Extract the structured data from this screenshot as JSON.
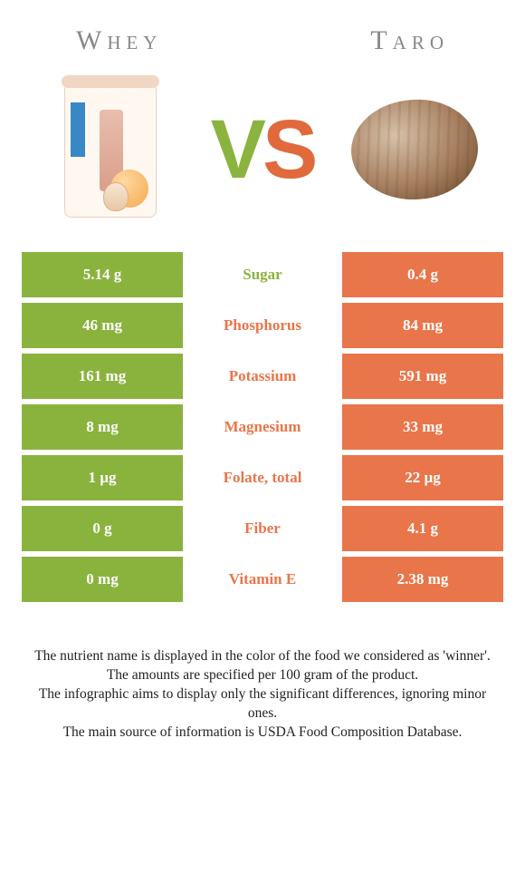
{
  "titles": {
    "left": "Whey",
    "right": "Taro"
  },
  "vs": {
    "v": "V",
    "s": "S"
  },
  "colors": {
    "left_bg": "#8ab33e",
    "right_bg": "#e9754a",
    "left_text": "#8ab33e",
    "right_text": "#e9754a",
    "title_text": "#888888"
  },
  "rows": [
    {
      "left": "5.14 g",
      "label": "Sugar",
      "right": "0.4 g",
      "winner": "left"
    },
    {
      "left": "46 mg",
      "label": "Phosphorus",
      "right": "84 mg",
      "winner": "right"
    },
    {
      "left": "161 mg",
      "label": "Potassium",
      "right": "591 mg",
      "winner": "right"
    },
    {
      "left": "8 mg",
      "label": "Magnesium",
      "right": "33 mg",
      "winner": "right"
    },
    {
      "left": "1 µg",
      "label": "Folate, total",
      "right": "22 µg",
      "winner": "right"
    },
    {
      "left": "0 g",
      "label": "Fiber",
      "right": "4.1 g",
      "winner": "right"
    },
    {
      "left": "0 mg",
      "label": "Vitamin E",
      "right": "2.38 mg",
      "winner": "right"
    }
  ],
  "footer": [
    "The nutrient name is displayed in the color of the food we considered as 'winner'.",
    "The amounts are specified per 100 gram of the product.",
    "The infographic aims to display only the significant differences, ignoring minor ones.",
    "The main source of information is USDA Food Composition Database."
  ]
}
